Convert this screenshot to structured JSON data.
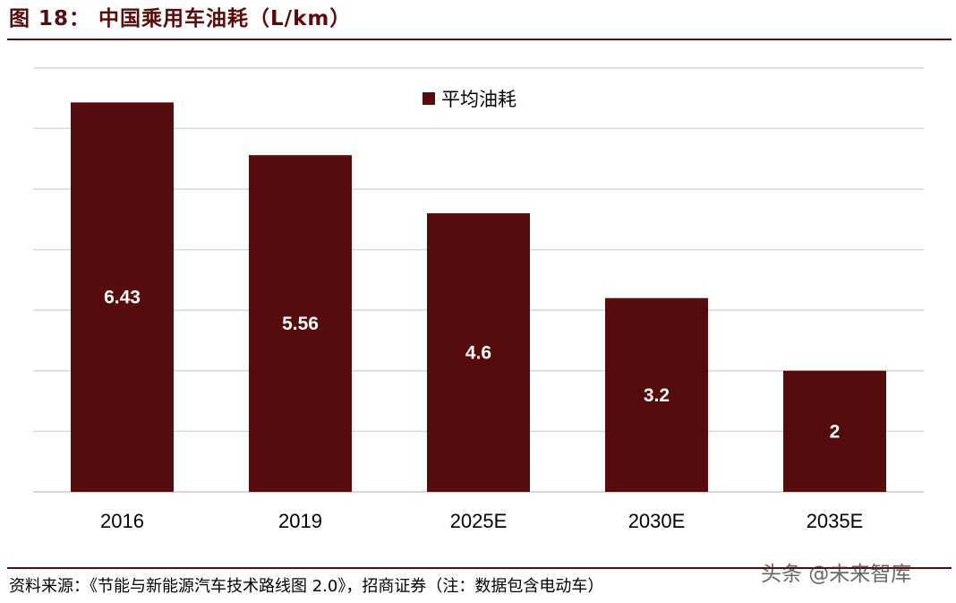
{
  "header": {
    "title": "图 18：  中国乘用车油耗（L/km）"
  },
  "colors": {
    "accent": "#5a0a0a",
    "bar": "#560b0c",
    "grid": "#d9d9d9",
    "title": "#5a0a0a"
  },
  "chart_data": {
    "type": "bar",
    "title": "",
    "xlabel": "",
    "ylabel": "",
    "categories": [
      "2016",
      "2019",
      "2025E",
      "2030E",
      "2035E"
    ],
    "series": [
      {
        "name": "平均油耗",
        "values": [
          6.43,
          5.56,
          4.6,
          3.2,
          2
        ]
      }
    ],
    "data_labels": [
      "6.43",
      "5.56",
      "4.6",
      "3.2",
      "2"
    ],
    "ylim": [
      0,
      7
    ],
    "y_gridline_step": 1,
    "y_tick_labels_shown": false,
    "grid": true,
    "legend": "top-center"
  },
  "footer": {
    "source": "资料来源：《节能与新能源汽车技术路线图 2.0》，招商证券（注：数据包含电动车）",
    "watermark": "头条 @未来智库"
  }
}
